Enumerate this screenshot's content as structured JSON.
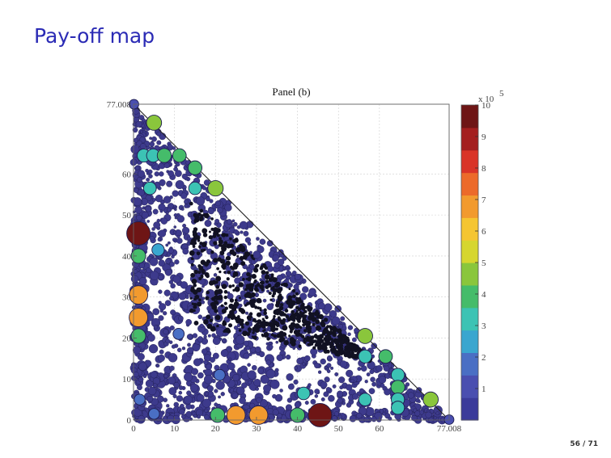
{
  "slide": {
    "title": "Pay-off map",
    "page_number": "56 / 71"
  },
  "chart_data": {
    "type": "scatter",
    "title": "Panel (b)",
    "xlabel": "",
    "ylabel": "",
    "xlim": [
      0,
      77.008
    ],
    "ylim": [
      0,
      77.008
    ],
    "x_tick_labels": [
      "0",
      "10",
      "20",
      "30",
      "40",
      "50",
      "60",
      "77.008"
    ],
    "y_tick_labels": [
      "0",
      "10",
      "20",
      "30",
      "40",
      "50",
      "60",
      "77.008"
    ],
    "grid": true,
    "boundary_line": {
      "x": [
        0,
        77.008
      ],
      "y": [
        77.008,
        0
      ]
    },
    "colorbar": {
      "label": "x 10^5",
      "multiplier_base": "x 10",
      "multiplier_exp": "5",
      "min": 0,
      "max": 10,
      "tick_labels": [
        "1",
        "2",
        "3",
        "4",
        "5",
        "6",
        "7",
        "8",
        "9",
        "10"
      ],
      "colormap": [
        "#3b3b9a",
        "#4a4fb0",
        "#4a6fc4",
        "#3aa6cf",
        "#3cc3b4",
        "#45bc6a",
        "#8ac63c",
        "#d6d62f",
        "#f5c531",
        "#f29a2e",
        "#ec6a2a",
        "#d93428",
        "#a41f1f",
        "#6e1515"
      ]
    },
    "background_points_color": "#3d3a8c",
    "highlight_points": [
      {
        "x": 0.1,
        "y": 77.0,
        "value": 1.0
      },
      {
        "x": 5.0,
        "y": 72.5,
        "value": 4.6
      },
      {
        "x": 2.5,
        "y": 64.5,
        "value": 3.3
      },
      {
        "x": 4.8,
        "y": 64.5,
        "value": 3.4
      },
      {
        "x": 7.5,
        "y": 64.5,
        "value": 3.9
      },
      {
        "x": 11.2,
        "y": 64.5,
        "value": 3.6
      },
      {
        "x": 15.0,
        "y": 61.5,
        "value": 3.8
      },
      {
        "x": 4.0,
        "y": 56.5,
        "value": 3.0
      },
      {
        "x": 15.0,
        "y": 56.5,
        "value": 3.0
      },
      {
        "x": 20.0,
        "y": 56.5,
        "value": 4.8
      },
      {
        "x": 1.2,
        "y": 45.5,
        "value": 10.0
      },
      {
        "x": 1.2,
        "y": 40.0,
        "value": 4.2
      },
      {
        "x": 6.0,
        "y": 41.5,
        "value": 2.8
      },
      {
        "x": 1.2,
        "y": 30.5,
        "value": 6.8
      },
      {
        "x": 1.2,
        "y": 25.0,
        "value": 6.8
      },
      {
        "x": 1.2,
        "y": 20.5,
        "value": 4.2
      },
      {
        "x": 11.0,
        "y": 21.0,
        "value": 2.0
      },
      {
        "x": 56.5,
        "y": 20.5,
        "value": 4.6
      },
      {
        "x": 56.5,
        "y": 15.5,
        "value": 3.3
      },
      {
        "x": 61.5,
        "y": 15.5,
        "value": 3.6
      },
      {
        "x": 64.5,
        "y": 11.0,
        "value": 3.4
      },
      {
        "x": 64.5,
        "y": 8.0,
        "value": 3.8
      },
      {
        "x": 64.5,
        "y": 5.0,
        "value": 3.3
      },
      {
        "x": 64.5,
        "y": 3.0,
        "value": 3.3
      },
      {
        "x": 56.5,
        "y": 5.0,
        "value": 3.0
      },
      {
        "x": 41.5,
        "y": 6.5,
        "value": 3.0
      },
      {
        "x": 72.5,
        "y": 5.0,
        "value": 4.6
      },
      {
        "x": 77.0,
        "y": 0.1,
        "value": 1.0
      },
      {
        "x": 20.5,
        "y": 1.2,
        "value": 4.2
      },
      {
        "x": 25.0,
        "y": 1.2,
        "value": 6.8
      },
      {
        "x": 30.5,
        "y": 1.2,
        "value": 6.8
      },
      {
        "x": 40.0,
        "y": 1.2,
        "value": 4.2
      },
      {
        "x": 45.5,
        "y": 1.2,
        "value": 10.0
      },
      {
        "x": 21.0,
        "y": 11.0,
        "value": 2.0
      },
      {
        "x": 1.5,
        "y": 5.0,
        "value": 1.8
      },
      {
        "x": 5.0,
        "y": 1.5,
        "value": 1.8
      }
    ]
  }
}
